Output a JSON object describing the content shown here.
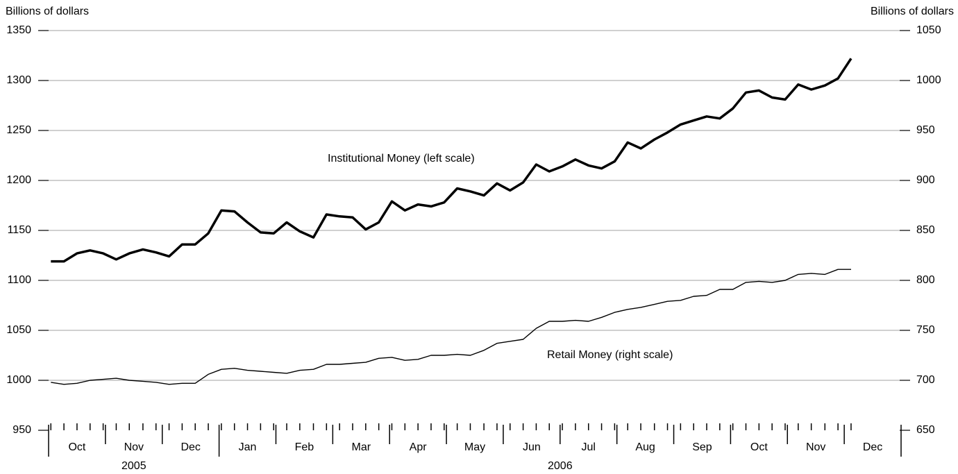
{
  "chart_data": {
    "type": "line",
    "ylabel": "Billions of dollars",
    "y2label": "Billions of dollars",
    "ylim": [
      950,
      1350
    ],
    "yticks": [
      950,
      1000,
      1050,
      1100,
      1150,
      1200,
      1250,
      1300,
      1350
    ],
    "y2lim": [
      650,
      1050
    ],
    "y2ticks": [
      650,
      700,
      750,
      800,
      850,
      900,
      950,
      1000,
      1050
    ],
    "grid": true,
    "xlim": [
      0,
      15
    ],
    "xticks": [
      {
        "value": 0.5,
        "label": "Oct"
      },
      {
        "value": 1.5,
        "label": "Nov"
      },
      {
        "value": 2.5,
        "label": "Dec"
      },
      {
        "value": 3.5,
        "label": "Jan"
      },
      {
        "value": 4.5,
        "label": "Feb"
      },
      {
        "value": 5.5,
        "label": "Mar"
      },
      {
        "value": 6.5,
        "label": "Apr"
      },
      {
        "value": 7.5,
        "label": "May"
      },
      {
        "value": 8.5,
        "label": "Jun"
      },
      {
        "value": 9.5,
        "label": "Jul"
      },
      {
        "value": 10.5,
        "label": "Aug"
      },
      {
        "value": 11.5,
        "label": "Sep"
      },
      {
        "value": 12.5,
        "label": "Oct"
      },
      {
        "value": 13.5,
        "label": "Nov"
      },
      {
        "value": 14.5,
        "label": "Dec"
      }
    ],
    "xgroups": [
      {
        "value": 1.5,
        "label": "2005"
      },
      {
        "value": 9,
        "label": "2006"
      }
    ],
    "x": [
      0.04,
      0.27,
      0.5,
      0.73,
      0.96,
      1.19,
      1.42,
      1.66,
      1.89,
      2.12,
      2.35,
      2.58,
      2.81,
      3.04,
      3.27,
      3.5,
      3.73,
      3.96,
      4.19,
      4.42,
      4.66,
      4.89,
      5.12,
      5.35,
      5.58,
      5.81,
      6.04,
      6.27,
      6.5,
      6.73,
      6.96,
      7.19,
      7.42,
      7.66,
      7.89,
      8.12,
      8.35,
      8.58,
      8.81,
      9.04,
      9.27,
      9.5,
      9.73,
      9.96,
      10.19,
      10.42,
      10.66,
      10.89,
      11.12,
      11.35,
      11.58,
      11.81,
      12.04,
      12.27,
      12.5,
      12.73,
      12.96,
      13.19,
      13.42,
      13.66,
      13.89,
      14.12
    ],
    "series": [
      {
        "name": "Institutional Money (left scale)",
        "color": "#000000",
        "axis": "y",
        "values": [
          1119,
          1119,
          1127,
          1130,
          1127,
          1121,
          1127,
          1131,
          1128,
          1124,
          1136,
          1136,
          1147,
          1170,
          1169,
          1158,
          1148,
          1147,
          1158,
          1149,
          1143,
          1166,
          1164,
          1163,
          1151,
          1158,
          1179,
          1170,
          1176,
          1174,
          1178,
          1192,
          1189,
          1185,
          1197,
          1190,
          1198,
          1216,
          1209,
          1214,
          1221,
          1215,
          1212,
          1219,
          1238,
          1232,
          1241,
          1248,
          1256,
          1260,
          1264,
          1262,
          1272,
          1288,
          1290,
          1283,
          1281,
          1296,
          1291,
          1295,
          1302,
          1322
        ]
      },
      {
        "name": "Retail Money (right scale)",
        "color": "#000000",
        "axis": "y2",
        "values": [
          698,
          696,
          697,
          700,
          701,
          702,
          700,
          699,
          698,
          696,
          697,
          697,
          706,
          711,
          712,
          710,
          709,
          708,
          707,
          710,
          711,
          716,
          716,
          717,
          718,
          722,
          723,
          720,
          721,
          725,
          725,
          726,
          725,
          730,
          737,
          739,
          741,
          752,
          759,
          759,
          760,
          759,
          763,
          768,
          771,
          773,
          776,
          779,
          780,
          784,
          785,
          791,
          791,
          798,
          799,
          798,
          800,
          806,
          807,
          806,
          811,
          811
        ]
      }
    ]
  }
}
